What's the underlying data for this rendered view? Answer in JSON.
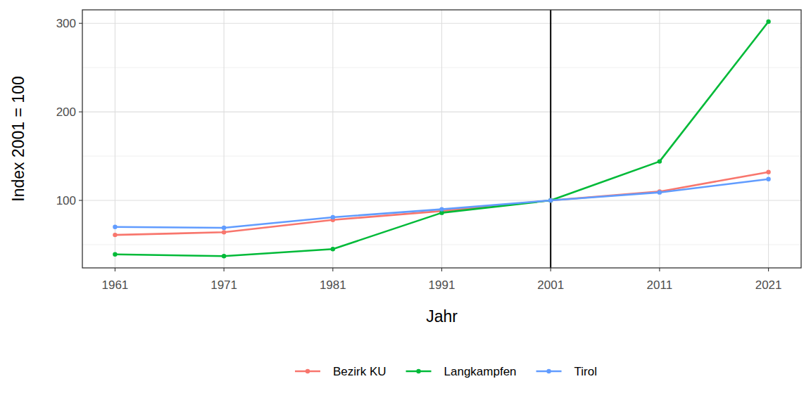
{
  "chart_data": {
    "type": "line",
    "x_label": "Jahr",
    "y_label": "Index 2001 = 100",
    "x": [
      1961,
      1971,
      1981,
      1991,
      2001,
      2011,
      2021
    ],
    "series": [
      {
        "name": "Bezirk KU",
        "color": "#F8766D",
        "marker": "circle",
        "values": [
          61,
          64,
          78,
          88,
          100,
          110,
          132
        ]
      },
      {
        "name": "Langkampfen",
        "color": "#00BA38",
        "marker": "circle",
        "values": [
          39,
          37,
          45,
          86,
          100,
          144,
          302
        ]
      },
      {
        "name": "Tirol",
        "color": "#619CFF",
        "marker": "circle",
        "values": [
          70,
          69,
          81,
          90,
          100,
          109,
          124
        ]
      }
    ],
    "xlim": [
      1958,
      2024
    ],
    "ylim": [
      23.75,
      315.25
    ],
    "xticks": [
      1961,
      1971,
      1981,
      1991,
      2001,
      2011,
      2021
    ],
    "yticks": [
      100,
      200,
      300
    ],
    "reference_lines": [
      {
        "x": 2001
      }
    ],
    "grid": true,
    "legend": "bottom"
  }
}
